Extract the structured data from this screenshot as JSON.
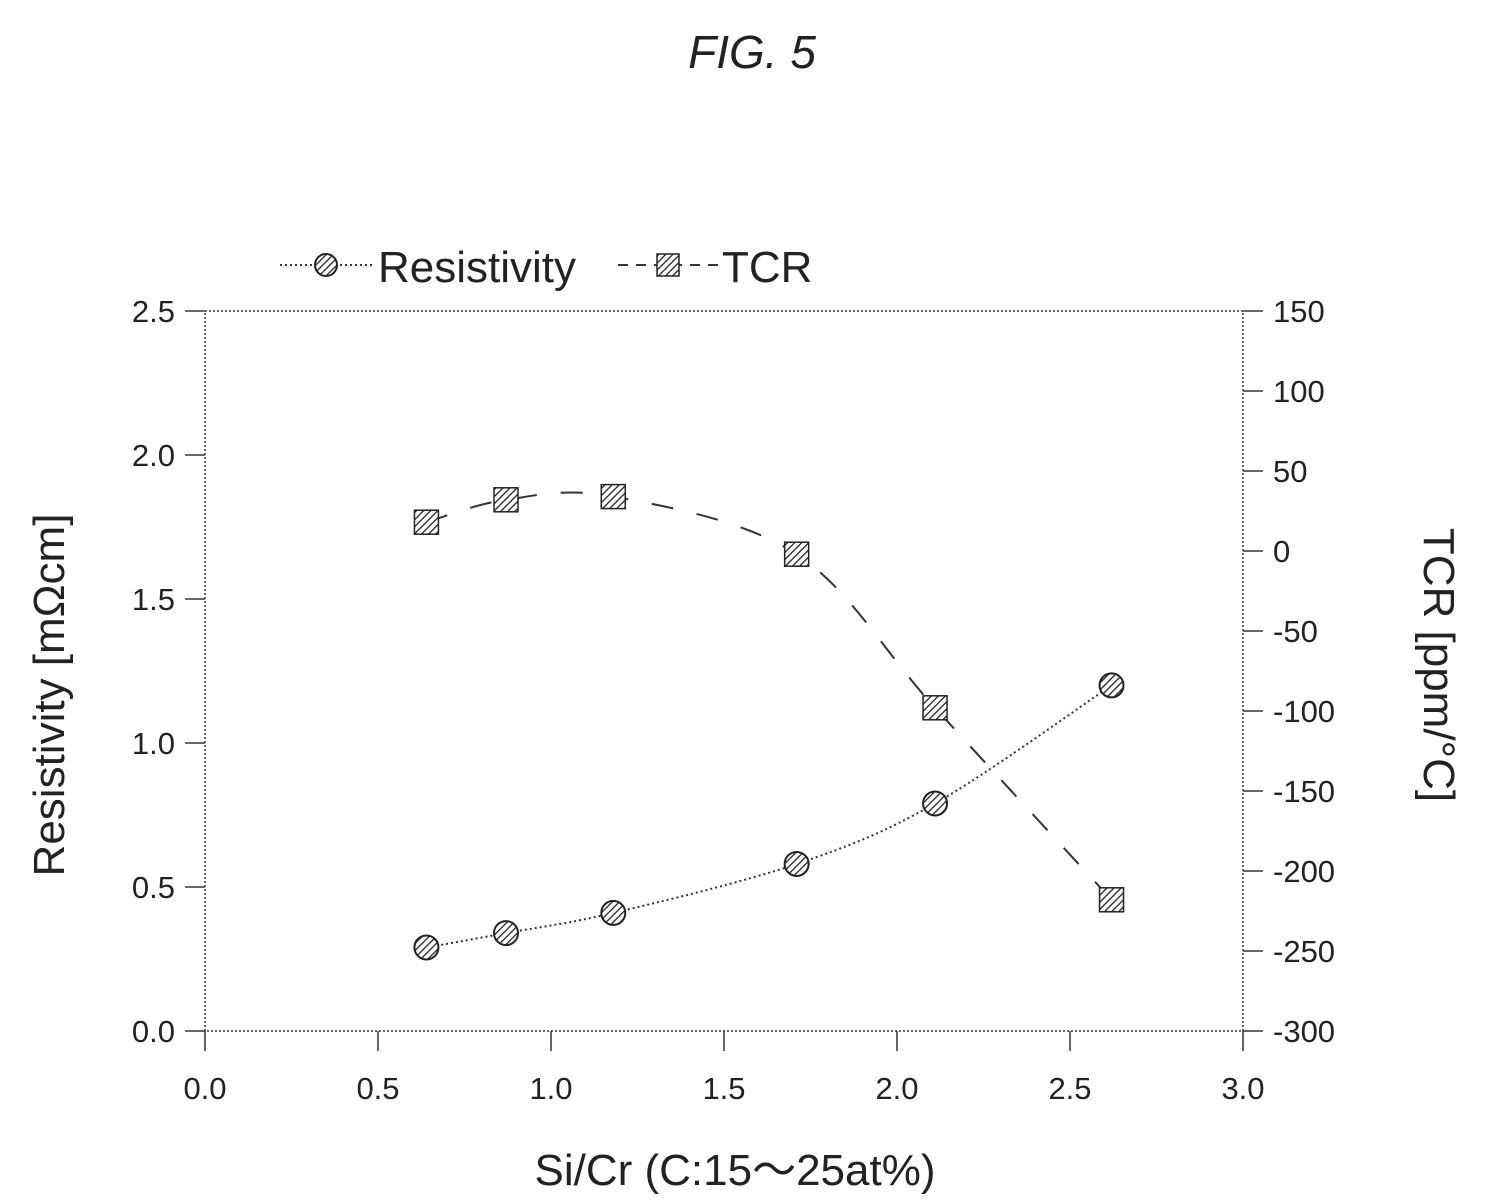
{
  "figure_label": "FIG. 5",
  "chart_data": {
    "type": "line",
    "xlabel": "Si/Cr (C:15〜25at%)",
    "ylabel_left": "Resistivity [mΩcm]",
    "ylabel_right": "TCR [ppm/°C]",
    "xlim": [
      0.0,
      3.0
    ],
    "ylim_left": [
      0.0,
      2.5
    ],
    "ylim_right": [
      -300,
      150
    ],
    "x_ticks": [
      "0.0",
      "0.5",
      "1.0",
      "1.5",
      "2.0",
      "2.5",
      "3.0"
    ],
    "y_left_ticks": [
      "0.0",
      "0.5",
      "1.0",
      "1.5",
      "2.0",
      "2.5"
    ],
    "y_right_ticks": [
      "-300",
      "-250",
      "-200",
      "-150",
      "-100",
      "-50",
      "0",
      "50",
      "100",
      "150"
    ],
    "legend_position": "top-left",
    "grid": false,
    "series": [
      {
        "name": "Resistivity",
        "axis": "left",
        "marker": "circle",
        "line_style": "dotted",
        "x": [
          0.64,
          0.87,
          1.18,
          1.71,
          2.11,
          2.62
        ],
        "y": [
          0.29,
          0.34,
          0.41,
          0.58,
          0.79,
          1.2
        ]
      },
      {
        "name": "TCR",
        "axis": "right",
        "marker": "square",
        "line_style": "dashed",
        "x": [
          0.64,
          0.87,
          1.18,
          1.71,
          2.11,
          2.62
        ],
        "y": [
          18,
          32,
          34,
          -2,
          -98,
          -218
        ]
      }
    ]
  }
}
